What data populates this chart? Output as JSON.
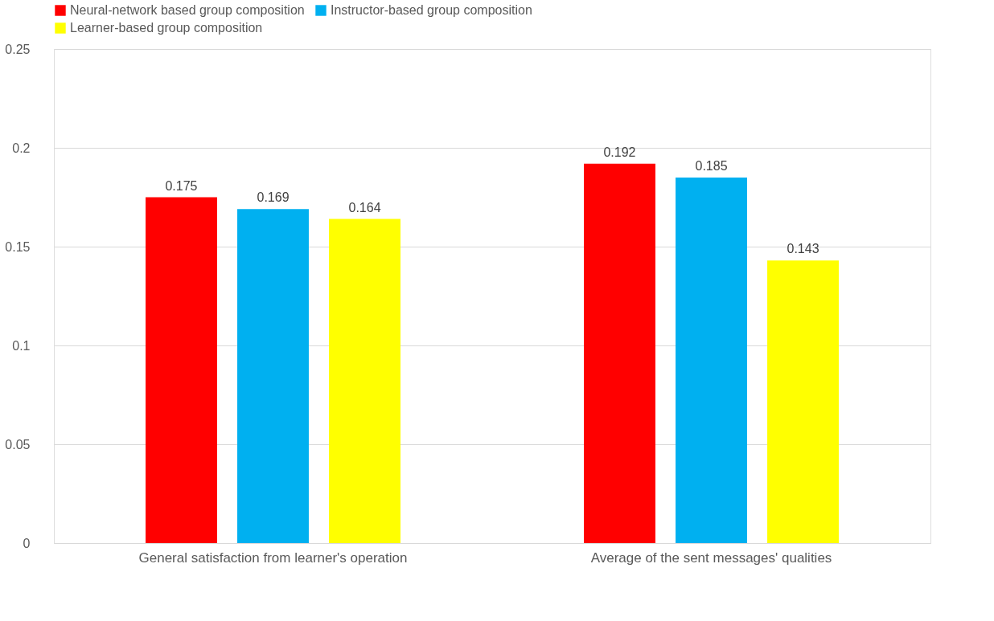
{
  "chart_data": {
    "type": "bar",
    "categories": [
      "General satisfaction from learner's operation",
      "Average of the sent messages' qualities"
    ],
    "series": [
      {
        "name": "Neural-network based group composition",
        "color": "#ff0000",
        "values": [
          0.175,
          0.192
        ]
      },
      {
        "name": "Instructor-based group composition",
        "color": "#00b0f0",
        "values": [
          0.169,
          0.185
        ]
      },
      {
        "name": "Learner-based group composition",
        "color": "#ffff00",
        "values": [
          0.164,
          0.143
        ]
      }
    ],
    "ylim": [
      0,
      0.25
    ],
    "yticks": [
      0,
      0.05,
      0.1,
      0.15,
      0.2,
      0.25
    ],
    "grid": "y",
    "legend": "top left",
    "data_labels": true
  }
}
